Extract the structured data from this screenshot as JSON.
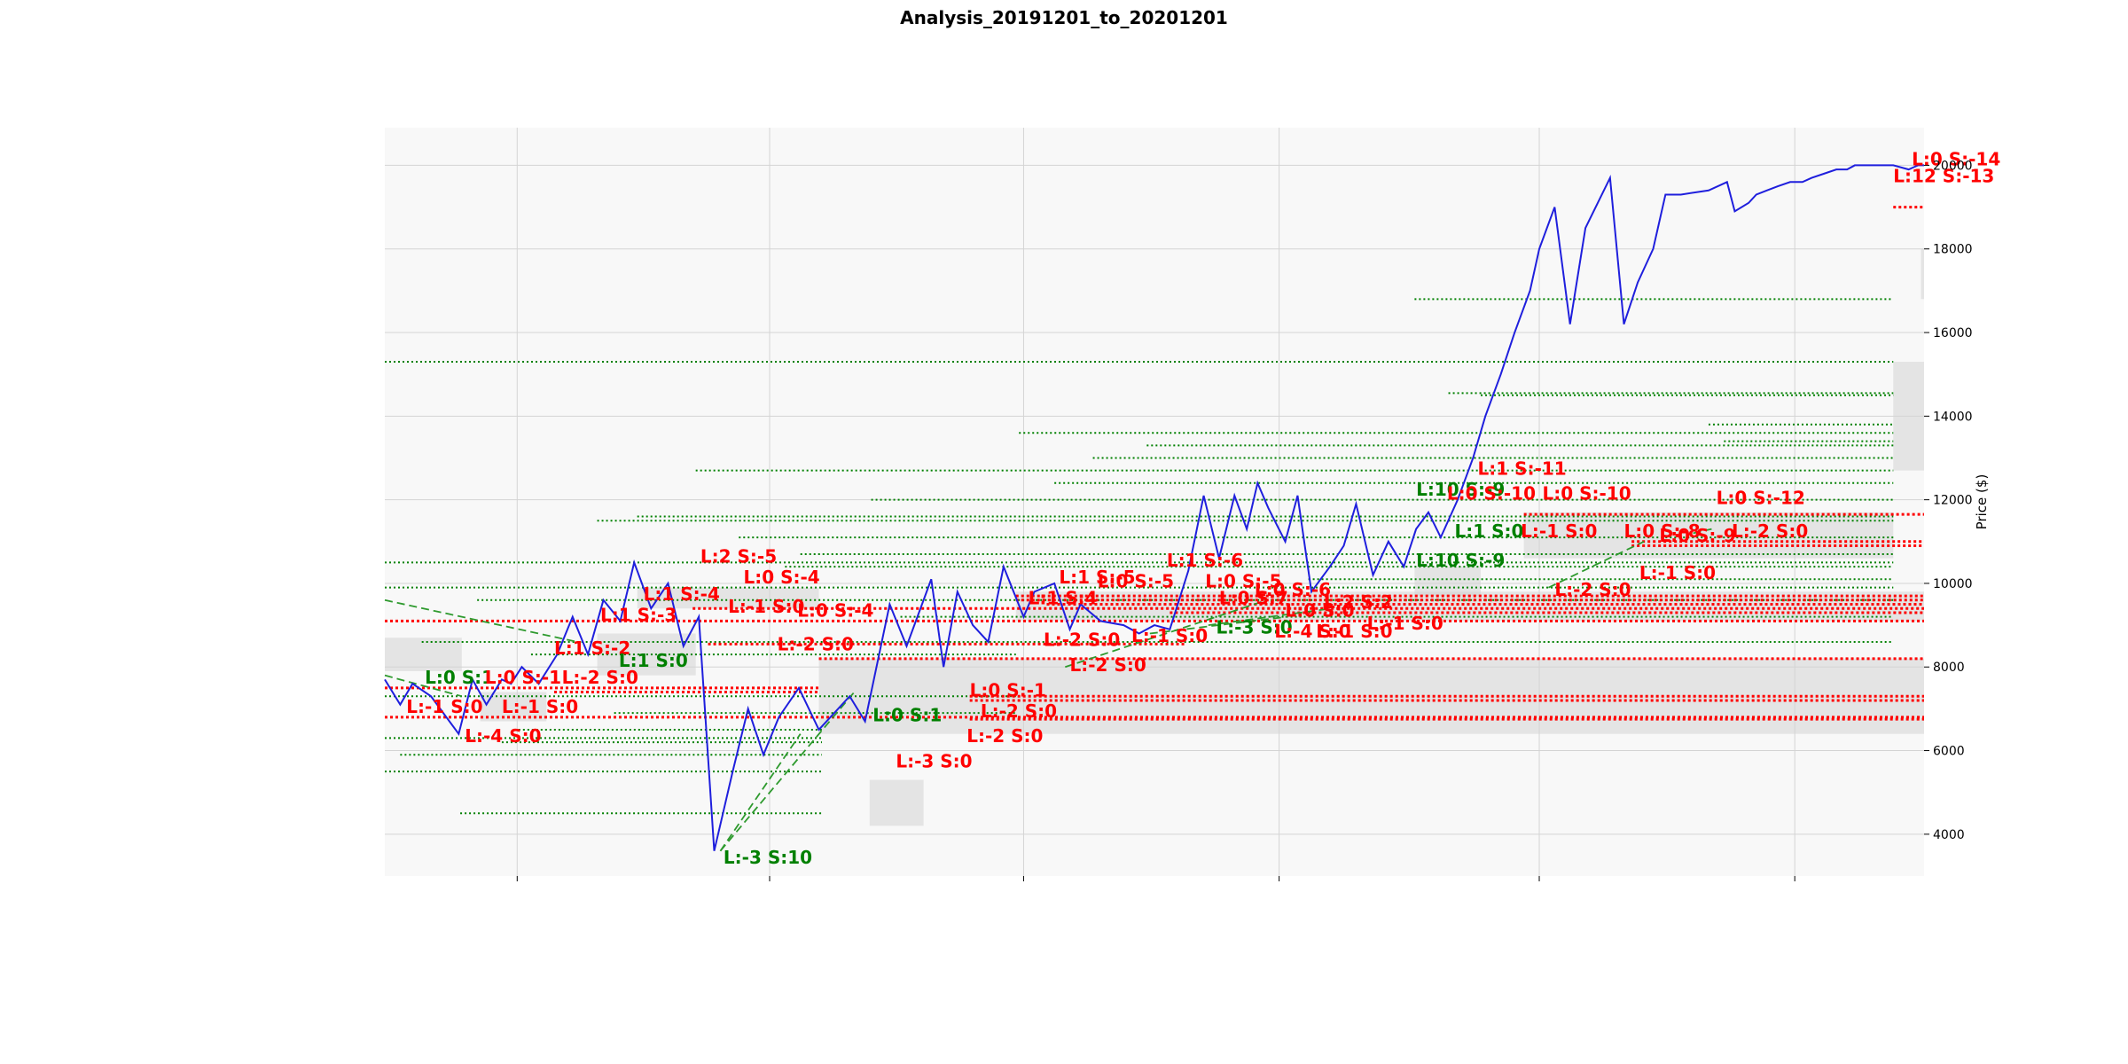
{
  "chart_data": {
    "type": "line",
    "title": "Analysis_20191201_to_20201201",
    "ylabel": "Price ($)",
    "xlabel": "",
    "ylim": [
      3000,
      20900
    ],
    "yticks": [
      4000,
      6000,
      8000,
      10000,
      12000,
      14000,
      16000,
      18000,
      20000
    ],
    "xtick_labels": [
      "",
      "",
      "",
      "",
      "",
      ""
    ],
    "grid": true,
    "legend": "none",
    "colors": {
      "price_line": "#1f1fdd",
      "support_lines": "#008000",
      "resistance_lines": "#ff0000",
      "trend_lines": "#2e9a2e",
      "zones": "#cccccc",
      "plot_bg": "#f8f8f8",
      "grid": "#d4d4d4",
      "annotation_red": "#ff0000",
      "annotation_green": "#008000"
    },
    "price_series": {
      "x": [
        0.0,
        1.0,
        1.8,
        3.0,
        4.8,
        5.7,
        6.6,
        7.6,
        8.2,
        8.9,
        10.0,
        11.2,
        12.2,
        13.2,
        14.2,
        15.3,
        16.2,
        17.3,
        18.4,
        19.4,
        20.4,
        21.4,
        22.6,
        23.6,
        24.6,
        25.6,
        26.9,
        28.2,
        30.2,
        31.2,
        32.8,
        33.9,
        35.5,
        36.3,
        37.2,
        38.2,
        39.2,
        40.2,
        41.5,
        42.2,
        43.5,
        44.5,
        45.2,
        46.5,
        48.0,
        49.0,
        50.0,
        51.0,
        52.2,
        53.2,
        54.2,
        55.2,
        56.0,
        56.7,
        57.4,
        58.5,
        59.3,
        60.2,
        61.4,
        62.3,
        63.1,
        64.2,
        65.2,
        66.2,
        67.0,
        67.8,
        68.6,
        69.7,
        70.7,
        71.5,
        72.5,
        73.4,
        74.4,
        75.0,
        76.0,
        77.0,
        78.0,
        79.6,
        80.5,
        81.4,
        82.4,
        83.2,
        84.2,
        86.0,
        87.2,
        87.7,
        88.6,
        89.1,
        89.8,
        90.5,
        91.3,
        92.1,
        92.7,
        93.5,
        94.3,
        95.0,
        95.5,
        96.2,
        97.0,
        98.0,
        99.0,
        99.6,
        100.0
      ],
      "y": [
        7700,
        7100,
        7600,
        7300,
        6400,
        7700,
        7100,
        7700,
        7600,
        8000,
        7600,
        8300,
        9200,
        8300,
        9600,
        9100,
        10500,
        9400,
        10000,
        8500,
        9200,
        3600,
        5500,
        7000,
        5900,
        6800,
        7500,
        6500,
        7300,
        6700,
        9500,
        8500,
        10100,
        8000,
        9800,
        9000,
        8600,
        10400,
        9200,
        9800,
        10000,
        8900,
        9500,
        9100,
        9000,
        8800,
        9000,
        8900,
        10300,
        12100,
        10600,
        12100,
        11300,
        12400,
        11800,
        11000,
        12100,
        9800,
        10400,
        10900,
        11900,
        10200,
        11000,
        10400,
        11300,
        11700,
        11100,
        12000,
        13000,
        14000,
        15000,
        16000,
        17000,
        18000,
        19000,
        16200,
        18500,
        19700,
        16200,
        17200,
        18000,
        19300,
        19300,
        19400,
        19600,
        18900,
        19100,
        19300,
        19400,
        19500,
        19600,
        19600,
        19700,
        19800,
        19900,
        19900,
        20000,
        20000,
        20000,
        20000,
        19900,
        20000,
        20000
      ]
    },
    "support_levels": [
      {
        "y": 15300,
        "x0": 0,
        "x1": 98
      },
      {
        "y": 16800,
        "x0": 66.9,
        "x1": 98
      },
      {
        "y": 14550,
        "x0": 69.1,
        "x1": 98
      },
      {
        "y": 14500,
        "x0": 71.2,
        "x1": 98
      },
      {
        "y": 13800,
        "x0": 86.0,
        "x1": 98
      },
      {
        "y": 13600,
        "x0": 41.2,
        "x1": 98
      },
      {
        "y": 13400,
        "x0": 87.0,
        "x1": 98
      },
      {
        "y": 13300,
        "x0": 49.5,
        "x1": 98
      },
      {
        "y": 13000,
        "x0": 46.0,
        "x1": 98
      },
      {
        "y": 12700,
        "x0": 20.2,
        "x1": 98
      },
      {
        "y": 12400,
        "x0": 43.5,
        "x1": 98
      },
      {
        "y": 12000,
        "x0": 31.6,
        "x1": 98
      },
      {
        "y": 11600,
        "x0": 16.4,
        "x1": 98
      },
      {
        "y": 11500,
        "x0": 13.8,
        "x1": 98
      },
      {
        "y": 11100,
        "x0": 23.0,
        "x1": 98
      },
      {
        "y": 10700,
        "x0": 27.0,
        "x1": 98
      },
      {
        "y": 10500,
        "x0": 0,
        "x1": 98
      },
      {
        "y": 10400,
        "x0": 26.0,
        "x1": 98
      },
      {
        "y": 10100,
        "x0": 60.0,
        "x1": 98
      },
      {
        "y": 9900,
        "x0": 0,
        "x1": 98
      },
      {
        "y": 9600,
        "x0": 6.0,
        "x1": 98
      },
      {
        "y": 9200,
        "x0": 33.5,
        "x1": 98
      },
      {
        "y": 8600,
        "x0": 2.4,
        "x1": 98
      },
      {
        "y": 8300,
        "x0": 9.5,
        "x1": 41.0
      },
      {
        "y": 7300,
        "x0": 0,
        "x1": 41.0
      },
      {
        "y": 6900,
        "x0": 14.9,
        "x1": 41.0
      },
      {
        "y": 6500,
        "x0": 8.4,
        "x1": 28.4
      },
      {
        "y": 6300,
        "x0": 0,
        "x1": 28.4
      },
      {
        "y": 6200,
        "x0": 7.6,
        "x1": 28.4
      },
      {
        "y": 5900,
        "x0": 1.0,
        "x1": 28.4
      },
      {
        "y": 5500,
        "x0": 0,
        "x1": 28.4
      },
      {
        "y": 4500,
        "x0": 4.9,
        "x1": 28.4
      }
    ],
    "resistance_levels": [
      {
        "y": 19000,
        "x0": 98.0,
        "x1": 100
      },
      {
        "y": 11650,
        "x0": 74.0,
        "x1": 100
      },
      {
        "y": 11000,
        "x0": 81.0,
        "x1": 100
      },
      {
        "y": 10900,
        "x0": 81.0,
        "x1": 100
      },
      {
        "y": 9700,
        "x0": 41.0,
        "x1": 100
      },
      {
        "y": 9600,
        "x0": 41.0,
        "x1": 100
      },
      {
        "y": 9500,
        "x0": 43.0,
        "x1": 100
      },
      {
        "y": 9400,
        "x0": 20.0,
        "x1": 100
      },
      {
        "y": 9300,
        "x0": 51.0,
        "x1": 100
      },
      {
        "y": 9100,
        "x0": 0,
        "x1": 100
      },
      {
        "y": 8550,
        "x0": 21.0,
        "x1": 52.0
      },
      {
        "y": 8200,
        "x0": 28.2,
        "x1": 100
      },
      {
        "y": 7500,
        "x0": 0,
        "x1": 28.2
      },
      {
        "y": 7400,
        "x0": 11.0,
        "x1": 28.2
      },
      {
        "y": 7300,
        "x0": 38.0,
        "x1": 100
      },
      {
        "y": 7200,
        "x0": 38.0,
        "x1": 100
      },
      {
        "y": 6800,
        "x0": 0,
        "x1": 100
      },
      {
        "y": 6750,
        "x0": 38.0,
        "x1": 100
      }
    ],
    "trend_lines": [
      {
        "x0": 0,
        "y0": 9600,
        "x1": 12.5,
        "y1": 8600
      },
      {
        "x0": 0,
        "y0": 7800,
        "x1": 5.0,
        "y1": 7300
      },
      {
        "x0": 21.8,
        "y0": 3600,
        "x1": 30.5,
        "y1": 7400
      },
      {
        "x0": 21.8,
        "y0": 3600,
        "x1": 27.0,
        "y1": 6400
      },
      {
        "x0": 44.2,
        "y0": 8000,
        "x1": 57.3,
        "y1": 9600
      },
      {
        "x0": 49.7,
        "y0": 8800,
        "x1": 58.6,
        "y1": 9200
      },
      {
        "x0": 53.5,
        "y0": 9000,
        "x1": 61.5,
        "y1": 9400
      },
      {
        "x0": 75.6,
        "y0": 9900,
        "x1": 81.8,
        "y1": 11000
      },
      {
        "x0": 85.0,
        "y0": 11200,
        "x1": 86.2,
        "y1": 11300
      }
    ],
    "zones": [
      {
        "x0": 0,
        "x1": 5.0,
        "y0": 7900,
        "y1": 8700
      },
      {
        "x0": 6.2,
        "x1": 10.5,
        "y0": 6700,
        "y1": 7400
      },
      {
        "x0": 13.8,
        "x1": 20.2,
        "y0": 7800,
        "y1": 8800
      },
      {
        "x0": 16.4,
        "x1": 28.2,
        "y0": 9400,
        "y1": 9900
      },
      {
        "x0": 28.2,
        "x1": 100,
        "y0": 6400,
        "y1": 8200
      },
      {
        "x0": 31.5,
        "x1": 35.0,
        "y0": 4200,
        "y1": 5300
      },
      {
        "x0": 41.0,
        "x1": 100,
        "y0": 9100,
        "y1": 9800
      },
      {
        "x0": 66.9,
        "x1": 71.2,
        "y0": 9700,
        "y1": 10400
      },
      {
        "x0": 74.0,
        "x1": 98.0,
        "y0": 10600,
        "y1": 11700
      },
      {
        "x0": 98.0,
        "x1": 100,
        "y0": 12700,
        "y1": 15300
      },
      {
        "x0": 99.8,
        "x1": 100,
        "y0": 16800,
        "y1": 18000
      }
    ],
    "annotations": [
      {
        "text": "L:0 S:-14",
        "x": 99.2,
        "y": 20000,
        "color": "red"
      },
      {
        "text": "L:12 S:-13",
        "x": 98.0,
        "y": 19600,
        "color": "red"
      },
      {
        "text": "L:10 S:-9",
        "x": 67.0,
        "y": 12100,
        "color": "green"
      },
      {
        "text": "L:0 S:-10",
        "x": 69.0,
        "y": 12000,
        "color": "red"
      },
      {
        "text": "L:1 S:-11",
        "x": 71.0,
        "y": 12600,
        "color": "red"
      },
      {
        "text": "L:0 S:-10",
        "x": 75.2,
        "y": 12000,
        "color": "red"
      },
      {
        "text": "L:1 S:0",
        "x": 69.5,
        "y": 11100,
        "color": "green"
      },
      {
        "text": "L:-1 S:0",
        "x": 73.8,
        "y": 11100,
        "color": "red"
      },
      {
        "text": "L:10 S:-9",
        "x": 67.0,
        "y": 10400,
        "color": "green"
      },
      {
        "text": "L:0 S:-12",
        "x": 86.5,
        "y": 11900,
        "color": "red"
      },
      {
        "text": "L:0 S:-8",
        "x": 80.5,
        "y": 11100,
        "color": "red"
      },
      {
        "text": "L:0 S:-9",
        "x": 82.8,
        "y": 11000,
        "color": "red"
      },
      {
        "text": "L:-2 S:0",
        "x": 87.5,
        "y": 11100,
        "color": "red"
      },
      {
        "text": "L:-1 S:0",
        "x": 81.5,
        "y": 10100,
        "color": "red"
      },
      {
        "text": "L:-2 S:0",
        "x": 76.0,
        "y": 9700,
        "color": "red"
      },
      {
        "text": "L:2 S:-5",
        "x": 20.5,
        "y": 10500,
        "color": "red"
      },
      {
        "text": "L:0 S:-4",
        "x": 23.3,
        "y": 10000,
        "color": "red"
      },
      {
        "text": "L:1 S:-4",
        "x": 16.8,
        "y": 9600,
        "color": "red"
      },
      {
        "text": "L:1 S:-3",
        "x": 14.0,
        "y": 9100,
        "color": "red"
      },
      {
        "text": "L:-1 S:0",
        "x": 22.3,
        "y": 9300,
        "color": "red"
      },
      {
        "text": "L:0 S:-4",
        "x": 26.8,
        "y": 9200,
        "color": "red"
      },
      {
        "text": "L:1 S:-2",
        "x": 11.0,
        "y": 8300,
        "color": "red"
      },
      {
        "text": "L:1 S:0",
        "x": 15.2,
        "y": 8000,
        "color": "green"
      },
      {
        "text": "L:-2 S:0",
        "x": 25.5,
        "y": 8400,
        "color": "red"
      },
      {
        "text": "L:0 S:1",
        "x": 2.6,
        "y": 7600,
        "color": "green"
      },
      {
        "text": "L:0 S:-1",
        "x": 6.5,
        "y": 7600,
        "color": "red"
      },
      {
        "text": "L:-2 S:0",
        "x": 11.5,
        "y": 7600,
        "color": "red"
      },
      {
        "text": "L:-1 S:0",
        "x": 1.4,
        "y": 6900,
        "color": "red"
      },
      {
        "text": "L:-1 S:0",
        "x": 7.6,
        "y": 6900,
        "color": "red"
      },
      {
        "text": "L:-4 S:0",
        "x": 5.2,
        "y": 6200,
        "color": "red"
      },
      {
        "text": "L:0 S:1",
        "x": 31.7,
        "y": 6700,
        "color": "green"
      },
      {
        "text": "L:-3 S:0",
        "x": 33.2,
        "y": 5600,
        "color": "red"
      },
      {
        "text": "L:-3 S:10",
        "x": 22.0,
        "y": 3300,
        "color": "green"
      },
      {
        "text": "L:0 S:-1",
        "x": 38.0,
        "y": 7300,
        "color": "red"
      },
      {
        "text": "L:-2 S:0",
        "x": 38.7,
        "y": 6800,
        "color": "red"
      },
      {
        "text": "L:-2 S:0",
        "x": 37.8,
        "y": 6200,
        "color": "red"
      },
      {
        "text": "L:1 S:4",
        "x": 41.8,
        "y": 9500,
        "color": "red"
      },
      {
        "text": "L:1 S:-5",
        "x": 43.8,
        "y": 10000,
        "color": "red"
      },
      {
        "text": "L:0 S:-5",
        "x": 46.3,
        "y": 9900,
        "color": "red"
      },
      {
        "text": "L:1 S:-6",
        "x": 50.8,
        "y": 10400,
        "color": "red"
      },
      {
        "text": "L:0 S:-5",
        "x": 53.3,
        "y": 9900,
        "color": "red"
      },
      {
        "text": "L:-2 S:0",
        "x": 42.8,
        "y": 8500,
        "color": "red"
      },
      {
        "text": "L:-1 S:0",
        "x": 48.5,
        "y": 8600,
        "color": "red"
      },
      {
        "text": "L:-2 S:0",
        "x": 44.5,
        "y": 7900,
        "color": "red"
      },
      {
        "text": "L:0 S:-6",
        "x": 56.5,
        "y": 9700,
        "color": "red"
      },
      {
        "text": "L:0 S:7",
        "x": 54.2,
        "y": 9500,
        "color": "red"
      },
      {
        "text": "L:2 S:2",
        "x": 61.0,
        "y": 9400,
        "color": "red"
      },
      {
        "text": "L:0 S:0",
        "x": 58.5,
        "y": 9200,
        "color": "red"
      },
      {
        "text": "L:-3 S:0",
        "x": 54.0,
        "y": 8800,
        "color": "green"
      },
      {
        "text": "L:-4 S:0",
        "x": 57.8,
        "y": 8700,
        "color": "red"
      },
      {
        "text": "L:-1 S:0",
        "x": 63.8,
        "y": 8900,
        "color": "red"
      },
      {
        "text": "L:-1 S:0",
        "x": 60.5,
        "y": 8700,
        "color": "red"
      }
    ]
  }
}
